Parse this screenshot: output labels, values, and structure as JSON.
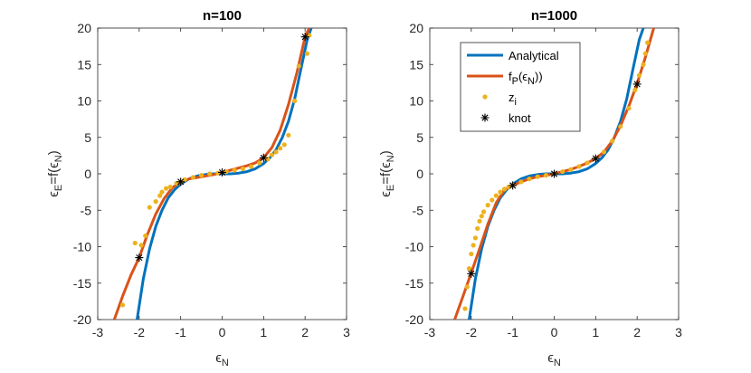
{
  "chart_data": [
    {
      "type": "line",
      "title": "n=100",
      "xlabel": "ϵ_N",
      "ylabel": "ϵ_E=f(ϵ_N)",
      "xlim": [
        -3,
        3
      ],
      "ylim": [
        -20,
        20
      ],
      "xticks": [
        -3,
        -2,
        -1,
        0,
        1,
        2,
        3
      ],
      "yticks": [
        -20,
        -15,
        -10,
        -5,
        0,
        5,
        10,
        15,
        20
      ],
      "grid": false,
      "series": [
        {
          "name": "Analytical",
          "kind": "line",
          "color": "#0072BD",
          "x": [
            -2.05,
            -1.9,
            -1.75,
            -1.6,
            -1.45,
            -1.3,
            -1.15,
            -1.0,
            -0.8,
            -0.6,
            -0.4,
            -0.2,
            0,
            0.2,
            0.4,
            0.6,
            0.8,
            1.0,
            1.15,
            1.3,
            1.45,
            1.6,
            1.75,
            1.9,
            2.05,
            2.15
          ],
          "y": [
            -20.0,
            -14.4,
            -10.3,
            -7.2,
            -5.0,
            -3.3,
            -2.2,
            -1.4,
            -0.7,
            -0.3,
            -0.1,
            0.0,
            0.0,
            0.0,
            0.1,
            0.3,
            0.7,
            1.4,
            2.2,
            3.3,
            5.0,
            7.2,
            10.3,
            14.4,
            18.4,
            20.0
          ]
        },
        {
          "name": "f_P(ϵ_N))",
          "kind": "line",
          "color": "#D95319",
          "x": [
            -2.6,
            -2.4,
            -2.2,
            -2.0,
            -1.8,
            -1.6,
            -1.4,
            -1.2,
            -1.0,
            -0.8,
            -0.6,
            -0.4,
            -0.2,
            0,
            0.2,
            0.4,
            0.6,
            0.8,
            1.0,
            1.2,
            1.4,
            1.6,
            1.8,
            2.0,
            2.1
          ],
          "y": [
            -20.0,
            -16.8,
            -13.9,
            -11.5,
            -8.3,
            -5.5,
            -3.4,
            -1.9,
            -1.1,
            -0.7,
            -0.5,
            -0.3,
            -0.1,
            0.2,
            0.5,
            0.8,
            1.1,
            1.5,
            2.2,
            3.6,
            6.0,
            9.5,
            13.8,
            18.8,
            20.0
          ]
        },
        {
          "name": "z_i",
          "kind": "scatter",
          "color": "#EDB120",
          "x": [
            -2.4,
            -2.1,
            -1.95,
            -1.85,
            -1.75,
            -1.6,
            -1.5,
            -1.45,
            -1.35,
            -1.25,
            -1.1,
            -1.0,
            -0.9,
            -0.7,
            -0.5,
            -0.3,
            -0.1,
            0.1,
            0.3,
            0.5,
            0.7,
            0.9,
            1.1,
            1.2,
            1.3,
            1.4,
            1.5,
            1.6,
            1.75,
            1.85,
            2.05,
            2.1
          ],
          "y": [
            -18.0,
            -9.5,
            -9.8,
            -8.5,
            -4.6,
            -3.8,
            -3.0,
            -2.5,
            -2.0,
            -1.8,
            -1.3,
            -1.1,
            -0.8,
            -0.5,
            -0.2,
            0.0,
            0.1,
            0.3,
            0.5,
            0.7,
            1.0,
            1.5,
            2.0,
            2.6,
            3.0,
            3.5,
            4.0,
            5.3,
            10.0,
            14.8,
            16.5,
            19.0
          ]
        },
        {
          "name": "knot",
          "kind": "marker",
          "color": "#000000",
          "x": [
            -2,
            -1,
            0,
            1,
            2
          ],
          "y": [
            -11.5,
            -1.1,
            0.2,
            2.2,
            18.8
          ]
        }
      ]
    },
    {
      "type": "line",
      "title": "n=1000",
      "xlabel": "ϵ_N",
      "ylabel": "ϵ_E=f(ϵ_N)",
      "xlim": [
        -3,
        3
      ],
      "ylim": [
        -20,
        20
      ],
      "xticks": [
        -3,
        -2,
        -1,
        0,
        1,
        2,
        3
      ],
      "yticks": [
        -20,
        -15,
        -10,
        -5,
        0,
        5,
        10,
        15,
        20
      ],
      "grid": false,
      "legend": "top-left",
      "series": [
        {
          "name": "Analytical",
          "kind": "line",
          "color": "#0072BD",
          "x": [
            -2.05,
            -1.9,
            -1.75,
            -1.6,
            -1.45,
            -1.3,
            -1.15,
            -1.0,
            -0.8,
            -0.6,
            -0.4,
            -0.2,
            0,
            0.2,
            0.4,
            0.6,
            0.8,
            1.0,
            1.15,
            1.3,
            1.45,
            1.6,
            1.75,
            1.9,
            2.05,
            2.15
          ],
          "y": [
            -20.0,
            -14.4,
            -10.3,
            -7.2,
            -5.0,
            -3.3,
            -2.2,
            -1.4,
            -0.7,
            -0.3,
            -0.1,
            0.0,
            0.0,
            0.0,
            0.1,
            0.3,
            0.7,
            1.4,
            2.2,
            3.3,
            5.0,
            7.2,
            10.3,
            14.4,
            18.4,
            20.0
          ]
        },
        {
          "name": "f_P(ϵ_N))",
          "kind": "line",
          "color": "#D95319",
          "x": [
            -2.4,
            -2.2,
            -2.0,
            -1.8,
            -1.6,
            -1.4,
            -1.2,
            -1.0,
            -0.8,
            -0.6,
            -0.4,
            -0.2,
            0,
            0.2,
            0.4,
            0.6,
            0.8,
            1.0,
            1.2,
            1.4,
            1.6,
            1.8,
            2.0,
            2.2,
            2.4
          ],
          "y": [
            -20.0,
            -16.8,
            -13.6,
            -10.3,
            -6.9,
            -4.0,
            -2.2,
            -1.6,
            -1.1,
            -0.7,
            -0.4,
            -0.2,
            0.0,
            0.3,
            0.6,
            1.0,
            1.5,
            2.1,
            3.0,
            4.5,
            6.6,
            9.3,
            12.4,
            16.0,
            20.0
          ]
        },
        {
          "name": "z_i",
          "kind": "scatter",
          "color": "#EDB120",
          "x": [
            -2.15,
            -2.1,
            -2.05,
            -2.0,
            -1.95,
            -1.9,
            -1.85,
            -1.8,
            -1.75,
            -1.7,
            -1.6,
            -1.5,
            -1.4,
            -1.3,
            -1.2,
            -1.1,
            -1.0,
            -0.8,
            -0.6,
            -0.4,
            -0.2,
            0.0,
            0.2,
            0.4,
            0.6,
            0.8,
            1.0,
            1.2,
            1.4,
            1.6,
            1.8,
            1.95,
            2.05,
            2.15,
            2.2,
            2.25
          ],
          "y": [
            -18.5,
            -15.5,
            -13.0,
            -11.0,
            -9.8,
            -8.8,
            -7.5,
            -6.5,
            -5.8,
            -5.2,
            -4.3,
            -3.6,
            -3.0,
            -2.5,
            -2.1,
            -1.8,
            -1.5,
            -1.1,
            -0.7,
            -0.4,
            -0.2,
            0.0,
            0.3,
            0.6,
            1.0,
            1.5,
            2.1,
            3.0,
            4.5,
            6.5,
            9.0,
            11.5,
            13.5,
            15.0,
            16.5,
            18.0
          ]
        },
        {
          "name": "knot",
          "kind": "marker",
          "color": "#000000",
          "x": [
            -2,
            -1,
            0,
            1,
            2
          ],
          "y": [
            -13.7,
            -1.6,
            0.0,
            2.1,
            12.3
          ]
        }
      ]
    }
  ]
}
